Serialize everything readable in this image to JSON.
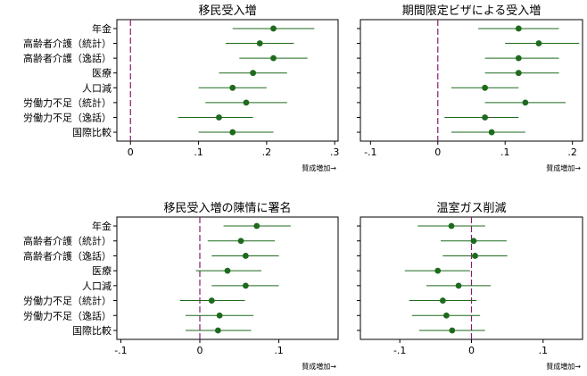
{
  "chart_data": [
    {
      "type": "scatter",
      "title": "移民受入増",
      "xlabel": "賛成増加→",
      "xlim": [
        -0.02,
        0.305
      ],
      "xticks": [
        "0",
        ".1",
        ".2",
        ".3"
      ],
      "xtick_values": [
        0,
        0.1,
        0.2,
        0.3
      ],
      "reference_line": 0,
      "categories": [
        "年金",
        "高齢者介護（統計）",
        "高齢者介護（逸話）",
        "医療",
        "人口減",
        "労働力不足（統計）",
        "労働力不足（逸話）",
        "国際比較"
      ],
      "estimates": [
        0.21,
        0.19,
        0.21,
        0.18,
        0.15,
        0.17,
        0.13,
        0.15
      ],
      "ci_low": [
        0.15,
        0.14,
        0.16,
        0.13,
        0.1,
        0.11,
        0.07,
        0.1
      ],
      "ci_high": [
        0.27,
        0.24,
        0.26,
        0.23,
        0.2,
        0.23,
        0.18,
        0.21
      ]
    },
    {
      "type": "scatter",
      "title": "期間限定ビザによる受入増",
      "xlabel": "賛成増加→",
      "xlim": [
        -0.115,
        0.215
      ],
      "xticks": [
        "-.1",
        "0",
        ".1",
        ".2"
      ],
      "xtick_values": [
        -0.1,
        0,
        0.1,
        0.2
      ],
      "reference_line": 0,
      "categories": [
        "年金",
        "高齢者介護（統計）",
        "高齢者介護（逸話）",
        "医療",
        "人口減",
        "労働力不足（統計）",
        "労働力不足（逸話）",
        "国際比較"
      ],
      "estimates": [
        0.12,
        0.15,
        0.12,
        0.12,
        0.07,
        0.13,
        0.07,
        0.08
      ],
      "ci_low": [
        0.06,
        0.1,
        0.07,
        0.07,
        0.02,
        0.07,
        0.01,
        0.02
      ],
      "ci_high": [
        0.18,
        0.21,
        0.18,
        0.18,
        0.12,
        0.19,
        0.12,
        0.13
      ]
    },
    {
      "type": "scatter",
      "title": "移民受入増の陳情に署名",
      "xlabel": "賛成増加→",
      "xlim": [
        -0.105,
        0.175
      ],
      "xticks": [
        "-.1",
        "0",
        ".1"
      ],
      "xtick_values": [
        -0.1,
        0,
        0.1
      ],
      "reference_line": 0,
      "categories": [
        "年金",
        "高齢者介護（統計）",
        "高齢者介護（逸話）",
        "医療",
        "人口減",
        "労働力不足（統計）",
        "労働力不足（逸話）",
        "国際比較"
      ],
      "estimates": [
        0.072,
        0.052,
        0.058,
        0.035,
        0.058,
        0.015,
        0.025,
        0.023
      ],
      "ci_low": [
        0.03,
        0.01,
        0.015,
        -0.005,
        0.015,
        -0.025,
        -0.018,
        -0.018
      ],
      "ci_high": [
        0.115,
        0.095,
        0.1,
        0.078,
        0.1,
        0.057,
        0.068,
        0.065
      ]
    },
    {
      "type": "scatter",
      "title": "温室ガス削減",
      "xlabel": "賛成増加→",
      "xlim": [
        -0.155,
        0.155
      ],
      "xticks": [
        "-.1",
        "0",
        ".1"
      ],
      "xtick_values": [
        -0.1,
        0,
        0.1
      ],
      "reference_line": 0,
      "categories": [
        "年金",
        "高齢者介護（統計）",
        "高齢者介護（逸話）",
        "医療",
        "人口減",
        "労働力不足（統計）",
        "労働力不足（逸話）",
        "国際比較"
      ],
      "estimates": [
        -0.028,
        0.003,
        0.005,
        -0.047,
        -0.018,
        -0.04,
        -0.035,
        -0.027
      ],
      "ci_low": [
        -0.075,
        -0.043,
        -0.04,
        -0.093,
        -0.063,
        -0.087,
        -0.083,
        -0.073
      ],
      "ci_high": [
        0.019,
        0.049,
        0.05,
        -0.002,
        0.027,
        0.007,
        0.012,
        0.019
      ]
    }
  ],
  "colors": {
    "point": "#1e6a1e",
    "ci": "#1e6a1e",
    "reference_line": "#8b1a6b",
    "frame": "#000000"
  }
}
